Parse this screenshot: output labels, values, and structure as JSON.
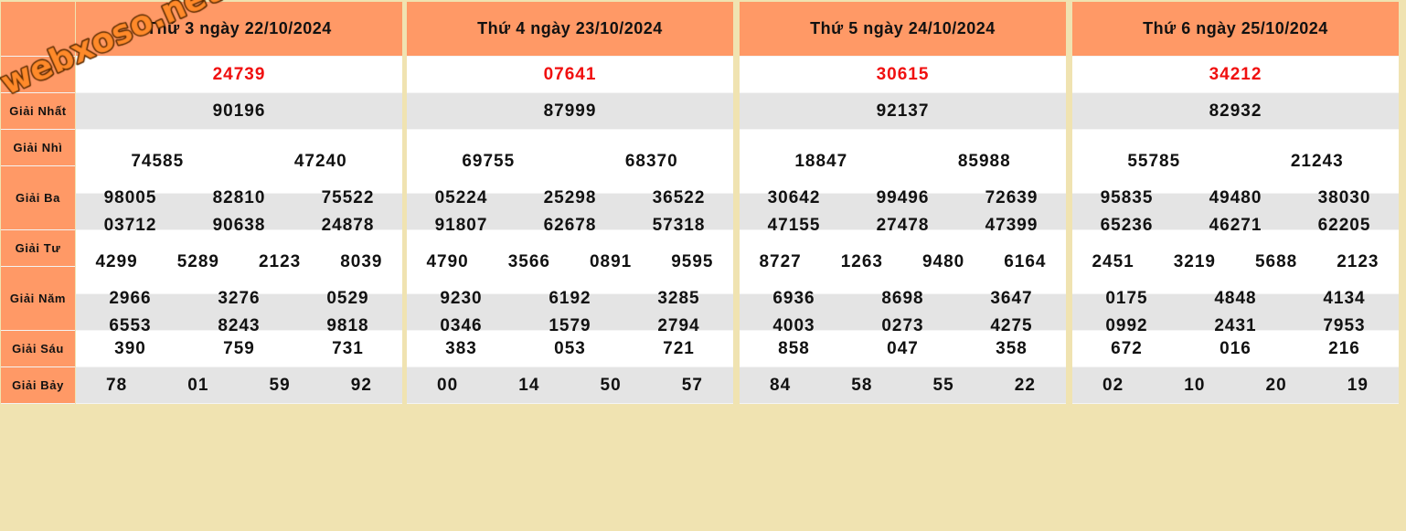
{
  "watermark_logo": "webxoso.net",
  "colors": {
    "header_bg": "#FF9966",
    "row_grey": "#E4E4E4",
    "page_bg": "#F0E3B1",
    "special_prize": "#F00F0F"
  },
  "labels": [
    "",
    "Giải Nhất",
    "Giải Nhì",
    "Giải Ba",
    "Giải Tư",
    "Giải Năm",
    "Giải Sáu",
    "Giải Bảy"
  ],
  "days": [
    {
      "title": "Thứ 3 ngày 22/10/2024",
      "special": "24739",
      "nhat": "90196",
      "nhi": [
        "74585",
        "47240"
      ],
      "ba": [
        "98005",
        "82810",
        "75522",
        "03712",
        "90638",
        "24878"
      ],
      "tu": [
        "4299",
        "5289",
        "2123",
        "8039"
      ],
      "nam": [
        "2966",
        "3276",
        "0529",
        "6553",
        "8243",
        "9818"
      ],
      "sau": [
        "390",
        "759",
        "731"
      ],
      "bay": [
        "78",
        "01",
        "59",
        "92"
      ]
    },
    {
      "title": "Thứ 4 ngày 23/10/2024",
      "special": "07641",
      "nhat": "87999",
      "nhi": [
        "69755",
        "68370"
      ],
      "ba": [
        "05224",
        "25298",
        "36522",
        "91807",
        "62678",
        "57318"
      ],
      "tu": [
        "4790",
        "3566",
        "0891",
        "9595"
      ],
      "nam": [
        "9230",
        "6192",
        "3285",
        "0346",
        "1579",
        "2794"
      ],
      "sau": [
        "383",
        "053",
        "721"
      ],
      "bay": [
        "00",
        "14",
        "50",
        "57"
      ]
    },
    {
      "title": "Thứ 5 ngày 24/10/2024",
      "special": "30615",
      "nhat": "92137",
      "nhi": [
        "18847",
        "85988"
      ],
      "ba": [
        "30642",
        "99496",
        "72639",
        "47155",
        "27478",
        "47399"
      ],
      "tu": [
        "8727",
        "1263",
        "9480",
        "6164"
      ],
      "nam": [
        "6936",
        "8698",
        "3647",
        "4003",
        "0273",
        "4275"
      ],
      "sau": [
        "858",
        "047",
        "358"
      ],
      "bay": [
        "84",
        "58",
        "55",
        "22"
      ]
    },
    {
      "title": "Thứ 6 ngày 25/10/2024",
      "special": "34212",
      "nhat": "82932",
      "nhi": [
        "55785",
        "21243"
      ],
      "ba": [
        "95835",
        "49480",
        "38030",
        "65236",
        "46271",
        "62205"
      ],
      "tu": [
        "2451",
        "3219",
        "5688",
        "2123"
      ],
      "nam": [
        "0175",
        "4848",
        "4134",
        "0992",
        "2431",
        "7953"
      ],
      "sau": [
        "672",
        "016",
        "216"
      ],
      "bay": [
        "02",
        "10",
        "20",
        "19"
      ]
    }
  ]
}
